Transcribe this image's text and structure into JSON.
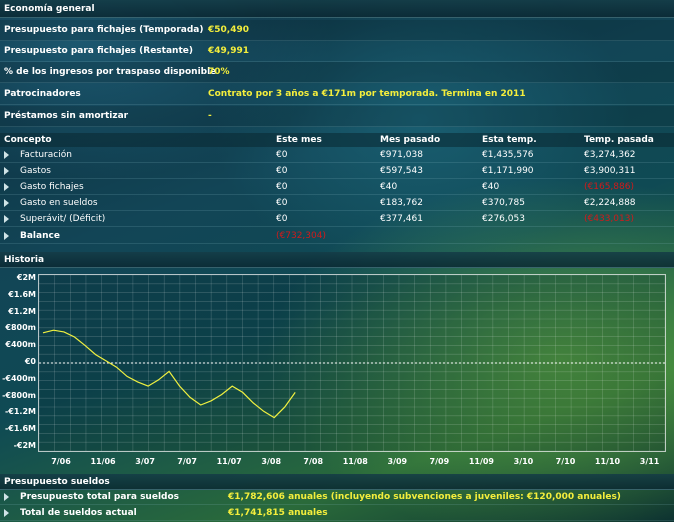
{
  "economia": {
    "title": "Economía general",
    "rows": [
      {
        "label": "Presupuesto para fichajes (Temporada)",
        "value": "€50,490"
      },
      {
        "label": "Presupuesto para fichajes (Restante)",
        "value": "€49,991"
      },
      {
        "label": "% de los ingresos por traspaso disponible",
        "value": "70%"
      },
      {
        "label": "Patrocinadores",
        "value": "Contrato por 3 años a €171m por temporada. Termina en 2011"
      },
      {
        "label": "Préstamos sin amortizar",
        "value": "-"
      }
    ]
  },
  "finance_table": {
    "headers": [
      "Concepto",
      "Este mes",
      "Mes pasado",
      "Esta temp.",
      "Temp. pasada"
    ],
    "rows": [
      {
        "concepto": "Facturación",
        "este_mes": "€0",
        "mes_pasado": "€971,038",
        "esta_temp": "€1,435,576",
        "temp_pasada": "€3,274,362"
      },
      {
        "concepto": "Gastos",
        "este_mes": "€0",
        "mes_pasado": "€597,543",
        "esta_temp": "€1,171,990",
        "temp_pasada": "€3,900,311"
      },
      {
        "concepto": "Gasto fichajes",
        "este_mes": "€0",
        "mes_pasado": "€40",
        "esta_temp": "€40",
        "temp_pasada": "(€165,886)"
      },
      {
        "concepto": "Gasto en sueldos",
        "este_mes": "€0",
        "mes_pasado": "€183,762",
        "esta_temp": "€370,785",
        "temp_pasada": "€2,224,888"
      },
      {
        "concepto": "Superávit/ (Déficit)",
        "este_mes": "€0",
        "mes_pasado": "€377,461",
        "esta_temp": "€276,053",
        "temp_pasada": "(€433,013)"
      }
    ],
    "balance": {
      "label": "Balance",
      "value": "(€732,304)"
    }
  },
  "historia": {
    "title": "Historia"
  },
  "chart_data": {
    "type": "line",
    "title": "",
    "ylim": [
      -2,
      2
    ],
    "y_ticks": [
      "€2M",
      "€1.6M",
      "€1.2M",
      "€800m",
      "€400m",
      "€0",
      "-€400m",
      "-€800m",
      "-€1.2M",
      "-€1.6M",
      "-€2M"
    ],
    "x_ticks": [
      "7/06",
      "11/06",
      "3/07",
      "7/07",
      "11/07",
      "3/08",
      "7/08",
      "11/08",
      "3/09",
      "7/09",
      "11/09",
      "3/10",
      "7/10",
      "11/10",
      "3/11"
    ],
    "grid": true,
    "line_color": "#f0f040",
    "series": [
      {
        "x": [
          0,
          0.25,
          0.5,
          0.75,
          1.0,
          1.25,
          1.5,
          1.75,
          2.0,
          2.25,
          2.5,
          2.75,
          3.0,
          3.25,
          3.5,
          3.75,
          4.0,
          4.25,
          4.5,
          4.75,
          5.0,
          5.25,
          5.5,
          5.75,
          6.0
        ],
        "values": [
          0.72,
          0.78,
          0.74,
          0.62,
          0.42,
          0.2,
          0.05,
          -0.1,
          -0.32,
          -0.45,
          -0.55,
          -0.4,
          -0.2,
          -0.55,
          -0.82,
          -1.0,
          -0.9,
          -0.75,
          -0.55,
          -0.7,
          -0.95,
          -1.15,
          -1.3,
          -1.05,
          -0.7
        ]
      }
    ]
  },
  "presupuesto_sueldos": {
    "title": "Presupuesto sueldos",
    "rows": [
      {
        "label": "Presupuesto total para sueldos",
        "value": "€1,782,606 anuales (incluyendo subvenciones a juveniles: €120,000 anuales)"
      },
      {
        "label": "Total de sueldos actual",
        "value": "€1,741,815 anuales"
      }
    ]
  }
}
